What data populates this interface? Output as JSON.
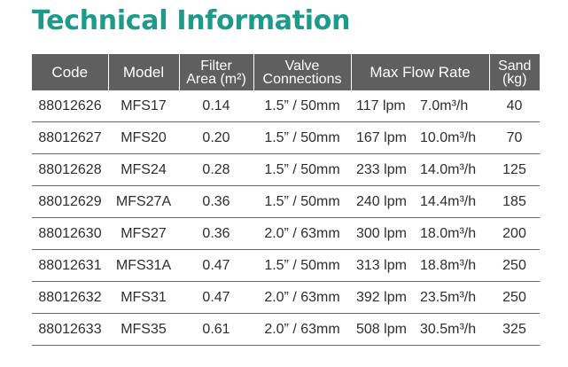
{
  "title": "Technical Information",
  "table": {
    "headers": {
      "code": "Code",
      "model": "Model",
      "filter_area_1": "Filter",
      "filter_area_2": "Area (m²)",
      "valve_1": "Valve",
      "valve_2": "Connections",
      "max_flow": "Max Flow Rate",
      "sand_1": "Sand",
      "sand_2": "(kg)"
    },
    "rows": [
      {
        "code": "88012626",
        "model": "MFS17",
        "area": "0.14",
        "valve": "1.5” / 50mm",
        "lpm": "117 lpm",
        "m3h": "7.0m³/h",
        "sand": "40"
      },
      {
        "code": "88012627",
        "model": "MFS20",
        "area": "0.20",
        "valve": "1.5” / 50mm",
        "lpm": "167 lpm",
        "m3h": "10.0m³/h",
        "sand": "70"
      },
      {
        "code": "88012628",
        "model": "MFS24",
        "area": "0.28",
        "valve": "1.5” / 50mm",
        "lpm": "233 lpm",
        "m3h": "14.0m³/h",
        "sand": "125"
      },
      {
        "code": "88012629",
        "model": "MFS27A",
        "area": "0.36",
        "valve": "1.5” / 50mm",
        "lpm": "240 lpm",
        "m3h": "14.4m³/h",
        "sand": "185"
      },
      {
        "code": "88012630",
        "model": "MFS27",
        "area": "0.36",
        "valve": "2.0” / 63mm",
        "lpm": "300 lpm",
        "m3h": "18.0m³/h",
        "sand": "200"
      },
      {
        "code": "88012631",
        "model": "MFS31A",
        "area": "0.47",
        "valve": "1.5” / 50mm",
        "lpm": "313 lpm",
        "m3h": "18.8m³/h",
        "sand": "250"
      },
      {
        "code": "88012632",
        "model": "MFS31",
        "area": "0.47",
        "valve": "2.0” / 63mm",
        "lpm": "392 lpm",
        "m3h": "23.5m³/h",
        "sand": "250"
      },
      {
        "code": "88012633",
        "model": "MFS35",
        "area": "0.61",
        "valve": "2.0” / 63mm",
        "lpm": "508 lpm",
        "m3h": "30.5m³/h",
        "sand": "325"
      }
    ]
  },
  "colors": {
    "title": "#1e9a8a",
    "header_bg": "#5f5f5f",
    "header_text": "#ffffff",
    "row_rule": "#6b6b6b"
  }
}
